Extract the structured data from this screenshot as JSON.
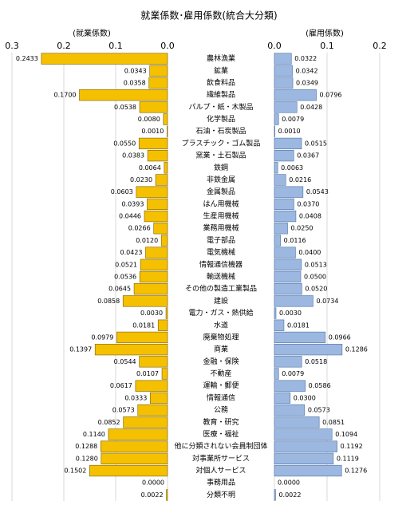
{
  "chart_data": {
    "type": "butterfly-bar",
    "title": "就業係数･雇用係数(統合大分類)",
    "categories": [
      "農林漁業",
      "鉱業",
      "飲食料品",
      "繊維製品",
      "パルプ・紙・木製品",
      "化学製品",
      "石油・石炭製品",
      "プラスチック・ゴム製品",
      "窯業・土石製品",
      "鉄鋼",
      "非鉄金属",
      "金属製品",
      "はん用機械",
      "生産用機械",
      "業務用機械",
      "電子部品",
      "電気機械",
      "情報通信機器",
      "輸送機械",
      "その他の製造工業製品",
      "建設",
      "電力・ガス・熱供給",
      "水道",
      "廃棄物処理",
      "商業",
      "金融・保険",
      "不動産",
      "運輸・郵便",
      "情報通信",
      "公務",
      "教育・研究",
      "医療・福祉",
      "他に分類されない会員制団体",
      "対事業所サービス",
      "対個人サービス",
      "事務用品",
      "分類不明"
    ],
    "series": [
      {
        "name": "(就業係数)",
        "color": "#f5c000",
        "side": "left",
        "values": [
          0.2433,
          0.0343,
          0.0358,
          0.17,
          0.0538,
          0.008,
          0.001,
          0.055,
          0.0383,
          0.0064,
          0.023,
          0.0603,
          0.0393,
          0.0446,
          0.0266,
          0.012,
          0.0423,
          0.0521,
          0.0536,
          0.0645,
          0.0858,
          0.003,
          0.0181,
          0.0979,
          0.1397,
          0.0544,
          0.0107,
          0.0617,
          0.0333,
          0.0573,
          0.0852,
          0.114,
          0.1288,
          0.128,
          0.1502,
          0,
          0.0022
        ],
        "value_labels": [
          "0.2433",
          "0.0343",
          "0.0358",
          "0.1700",
          "0.0538",
          "0.0080",
          "0.0010",
          "0.0550",
          "0.0383",
          "0.0064",
          "0.0230",
          "0.0603",
          "0.0393",
          "0.0446",
          "0.0266",
          "0.0120",
          "0.0423",
          "0.0521",
          "0.0536",
          "0.0645",
          "0.0858",
          "0.0030",
          "0.0181",
          "0.0979",
          "0.1397",
          "0.0544",
          "0.0107",
          "0.0617",
          "0.0333",
          "0.0573",
          "0.0852",
          "0.1140",
          "0.1288",
          "0.1280",
          "0.1502",
          "0.0000",
          "0.0022"
        ]
      },
      {
        "name": "(雇用係数)",
        "color": "#9db8e0",
        "side": "right",
        "values": [
          0.0322,
          0.0342,
          0.0349,
          0.0796,
          0.0428,
          0.0079,
          0.001,
          0.0515,
          0.0367,
          0.0063,
          0.0216,
          0.0543,
          0.037,
          0.0408,
          0.025,
          0.0116,
          0.04,
          0.0513,
          0.05,
          0.052,
          0.0734,
          0.003,
          0.0181,
          0.0966,
          0.1286,
          0.0518,
          0.0079,
          0.0586,
          0.03,
          0.0573,
          0.0851,
          0.1094,
          0.1192,
          0.1119,
          0.1276,
          0,
          0.0022
        ],
        "value_labels": [
          "0.0322",
          "0.0342",
          "0.0349",
          "0.0796",
          "0.0428",
          "0.0079",
          "0.0010",
          "0.0515",
          "0.0367",
          "0.0063",
          "0.0216",
          "0.0543",
          "0.0370",
          "0.0408",
          "0.0250",
          "0.0116",
          "0.0400",
          "0.0513",
          "0.0500",
          "0.0520",
          "0.0734",
          "0.0030",
          "0.0181",
          "0.0966",
          "0.1286",
          "0.0518",
          "0.0079",
          "0.0586",
          "0.0300",
          "0.0573",
          "0.0851",
          "0.1094",
          "0.1192",
          "0.1119",
          "0.1276",
          "0.0000",
          "0.0022"
        ]
      }
    ],
    "xlim": [
      0.3,
      0
    ],
    "xticks": [
      0.3,
      0.2,
      0.1,
      {
        "value": 0,
        "label": "0.0"
      }
    ],
    "x2lim": [
      0,
      0.2
    ],
    "x2ticks": [
      {
        "value": 0,
        "label": "0.0"
      },
      0.1,
      0.2
    ],
    "grid": true
  }
}
